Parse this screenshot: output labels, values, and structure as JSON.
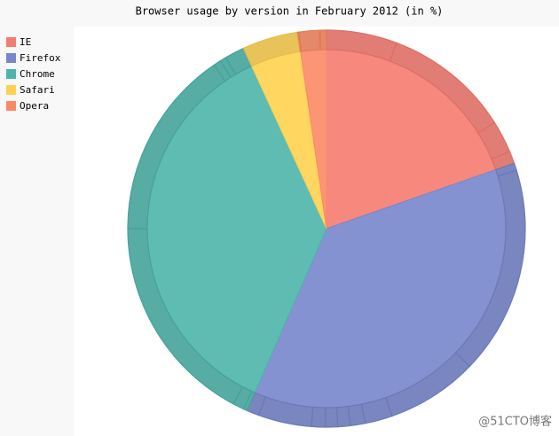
{
  "chart_data": {
    "type": "pie",
    "title": "Browser usage by version in February 2012 (in %)",
    "series": [
      {
        "name": "IE",
        "color": "#f67b70",
        "values": [
          5.7,
          10.2,
          2.6,
          1
        ]
      },
      {
        "name": "Firefox",
        "color": "#7886cc",
        "values": [
          0.6,
          16.8,
          7.4,
          2.2,
          1.2,
          1,
          1,
          1.1,
          4.3,
          1
        ]
      },
      {
        "name": "Chrome",
        "color": "#4db5ab",
        "values": [
          0.3,
          0.9,
          17.1,
          15.3,
          0.6,
          0.5,
          1.6
        ]
      },
      {
        "name": "Safari",
        "color": "#fed24f",
        "values": [
          4.4,
          0.1
        ]
      },
      {
        "name": "Opera",
        "color": "#fc8965",
        "values": [
          0.1,
          1.6,
          0.1,
          0.5
        ]
      }
    ],
    "legend": "left",
    "watermark": "@51CTO博客"
  }
}
